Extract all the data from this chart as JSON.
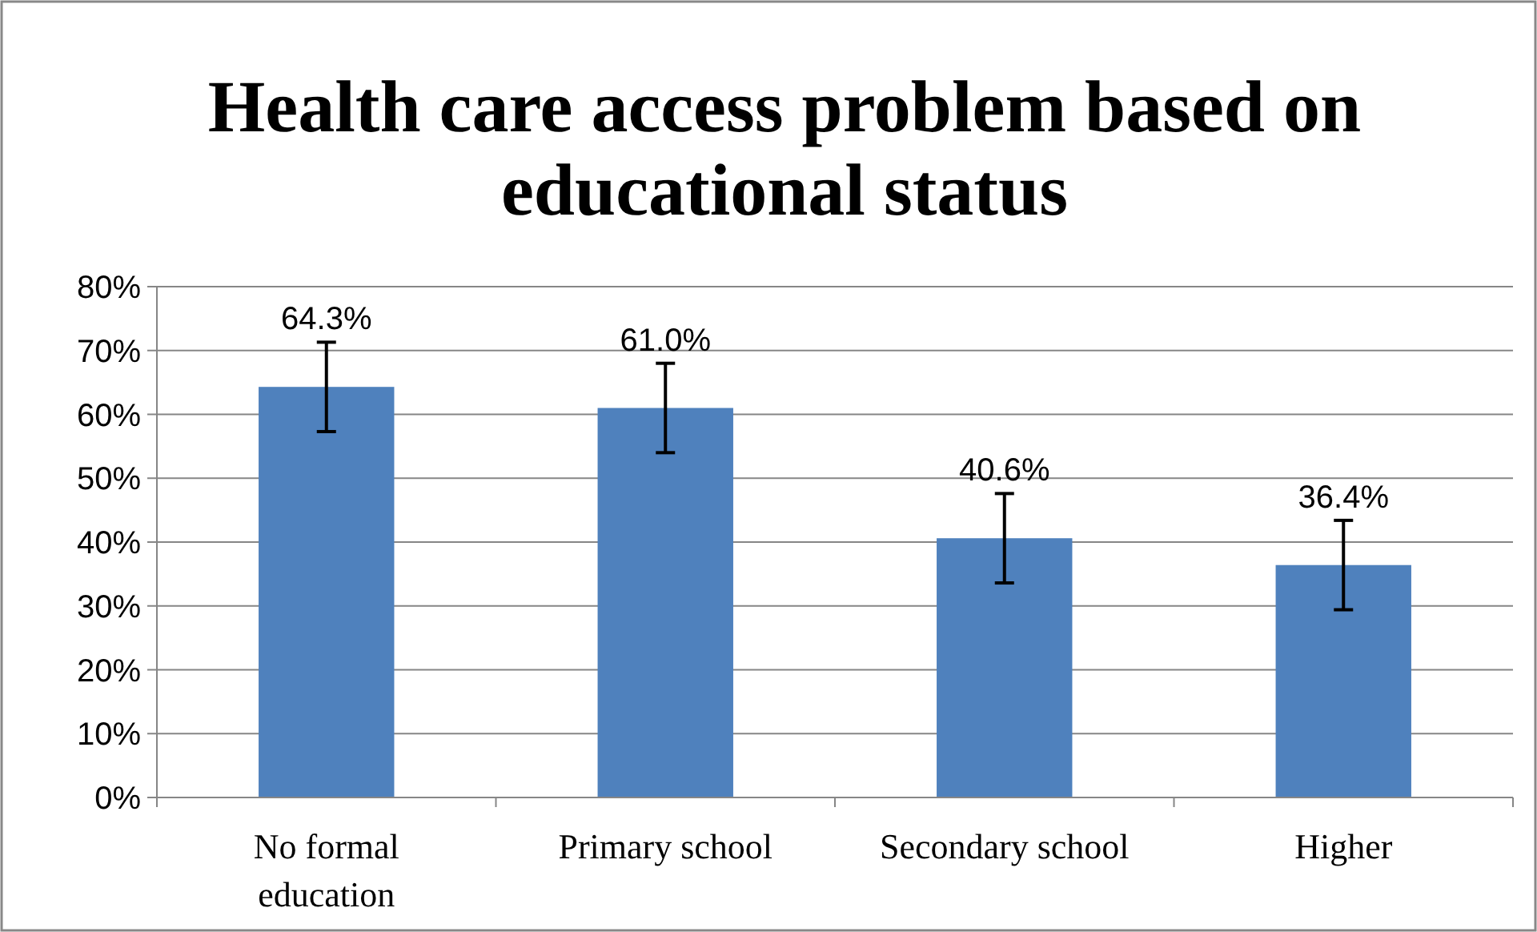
{
  "chart_data": {
    "type": "bar",
    "title": "Health care access problem based on educational status",
    "categories": [
      "No formal education",
      "Primary school",
      "Secondary school",
      "Higher"
    ],
    "values": [
      64.3,
      61.0,
      40.6,
      36.4
    ],
    "errors": [
      7,
      7,
      7,
      7
    ],
    "value_labels": [
      "64.3%",
      "61.0%",
      "40.6%",
      "36.4%"
    ],
    "color": "#4f81bd",
    "ylim": [
      0,
      80
    ],
    "yticks": [
      {
        "value": 0,
        "label": "0%"
      },
      {
        "value": 10,
        "label": "10%"
      },
      {
        "value": 20,
        "label": "20%"
      },
      {
        "value": 30,
        "label": "30%"
      },
      {
        "value": 40,
        "label": "40%"
      },
      {
        "value": 50,
        "label": "50%"
      },
      {
        "value": 60,
        "label": "60%"
      },
      {
        "value": 70,
        "label": "70%"
      },
      {
        "value": 80,
        "label": "80%"
      }
    ],
    "grid": "y"
  }
}
